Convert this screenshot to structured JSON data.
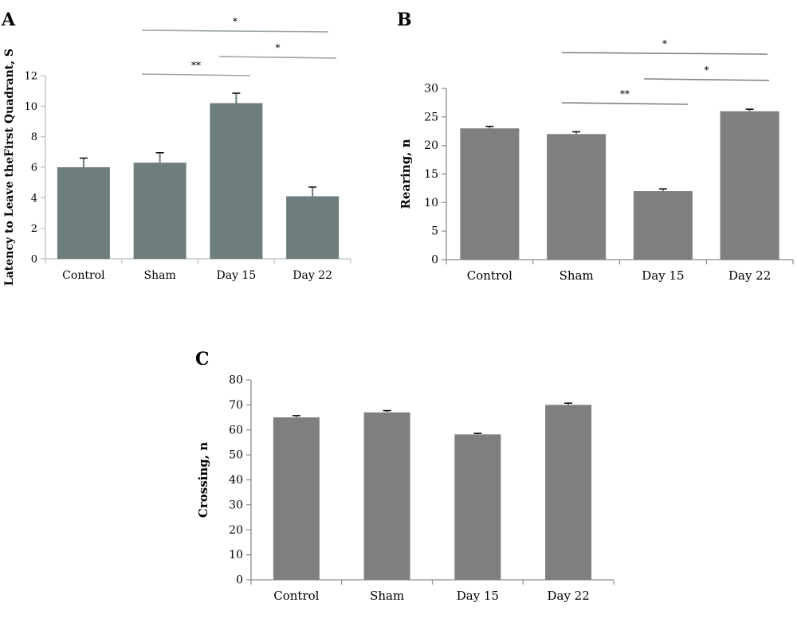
{
  "chart_data": [
    {
      "panel": "A",
      "type": "bar",
      "categories": [
        "Control",
        "Sham",
        "Day 15",
        "Day 22"
      ],
      "values": [
        6.0,
        6.3,
        10.2,
        4.1
      ],
      "errors": [
        0.6,
        0.65,
        0.65,
        0.6
      ],
      "ylabel": "Latency to Leave theFirst Quadrant, S",
      "xlabel": "",
      "ylim": [
        0,
        12
      ],
      "yticks": [
        0,
        2,
        4,
        6,
        8,
        10,
        12
      ],
      "bar_color": "#6e7d7d",
      "line_color": "#9aa5a5",
      "annotations": [
        {
          "label": "*",
          "from": "Sham",
          "to": "Day 22",
          "level": 1
        },
        {
          "label": "*",
          "from": "Day 15",
          "to": "Day 22",
          "level": 2
        },
        {
          "label": "**",
          "from": "Sham",
          "to": "Day 15",
          "level": 3
        }
      ]
    },
    {
      "panel": "B",
      "type": "bar",
      "categories": [
        "Control",
        "Sham",
        "Day 15",
        "Day 22"
      ],
      "values": [
        23.0,
        22.0,
        12.0,
        26.0
      ],
      "errors": [
        0.35,
        0.4,
        0.4,
        0.35
      ],
      "ylabel": "Rearing, n",
      "xlabel": "",
      "ylim": [
        0,
        30
      ],
      "yticks": [
        0,
        5,
        10,
        15,
        20,
        25,
        30
      ],
      "bar_color": "#7f7f7f",
      "line_color": "#7f7f7f",
      "annotations": [
        {
          "label": "*",
          "from": "Sham",
          "to": "Day 22",
          "level": 1
        },
        {
          "label": "*",
          "from": "Day 15",
          "to": "Day 22",
          "level": 2
        },
        {
          "label": "**",
          "from": "Sham",
          "to": "Day 15",
          "level": 3
        }
      ]
    },
    {
      "panel": "C",
      "type": "bar",
      "categories": [
        "Control",
        "Sham",
        "Day 15",
        "Day 22"
      ],
      "values": [
        65.0,
        67.0,
        58.2,
        70.0
      ],
      "errors": [
        0.7,
        0.7,
        0.4,
        0.7
      ],
      "ylabel": "Crossing, n",
      "xlabel": "",
      "ylim": [
        0,
        80
      ],
      "yticks": [
        0,
        10,
        20,
        30,
        40,
        50,
        60,
        70,
        80
      ],
      "bar_color": "#7f7f7f",
      "line_color": "#7f7f7f",
      "annotations": []
    }
  ]
}
